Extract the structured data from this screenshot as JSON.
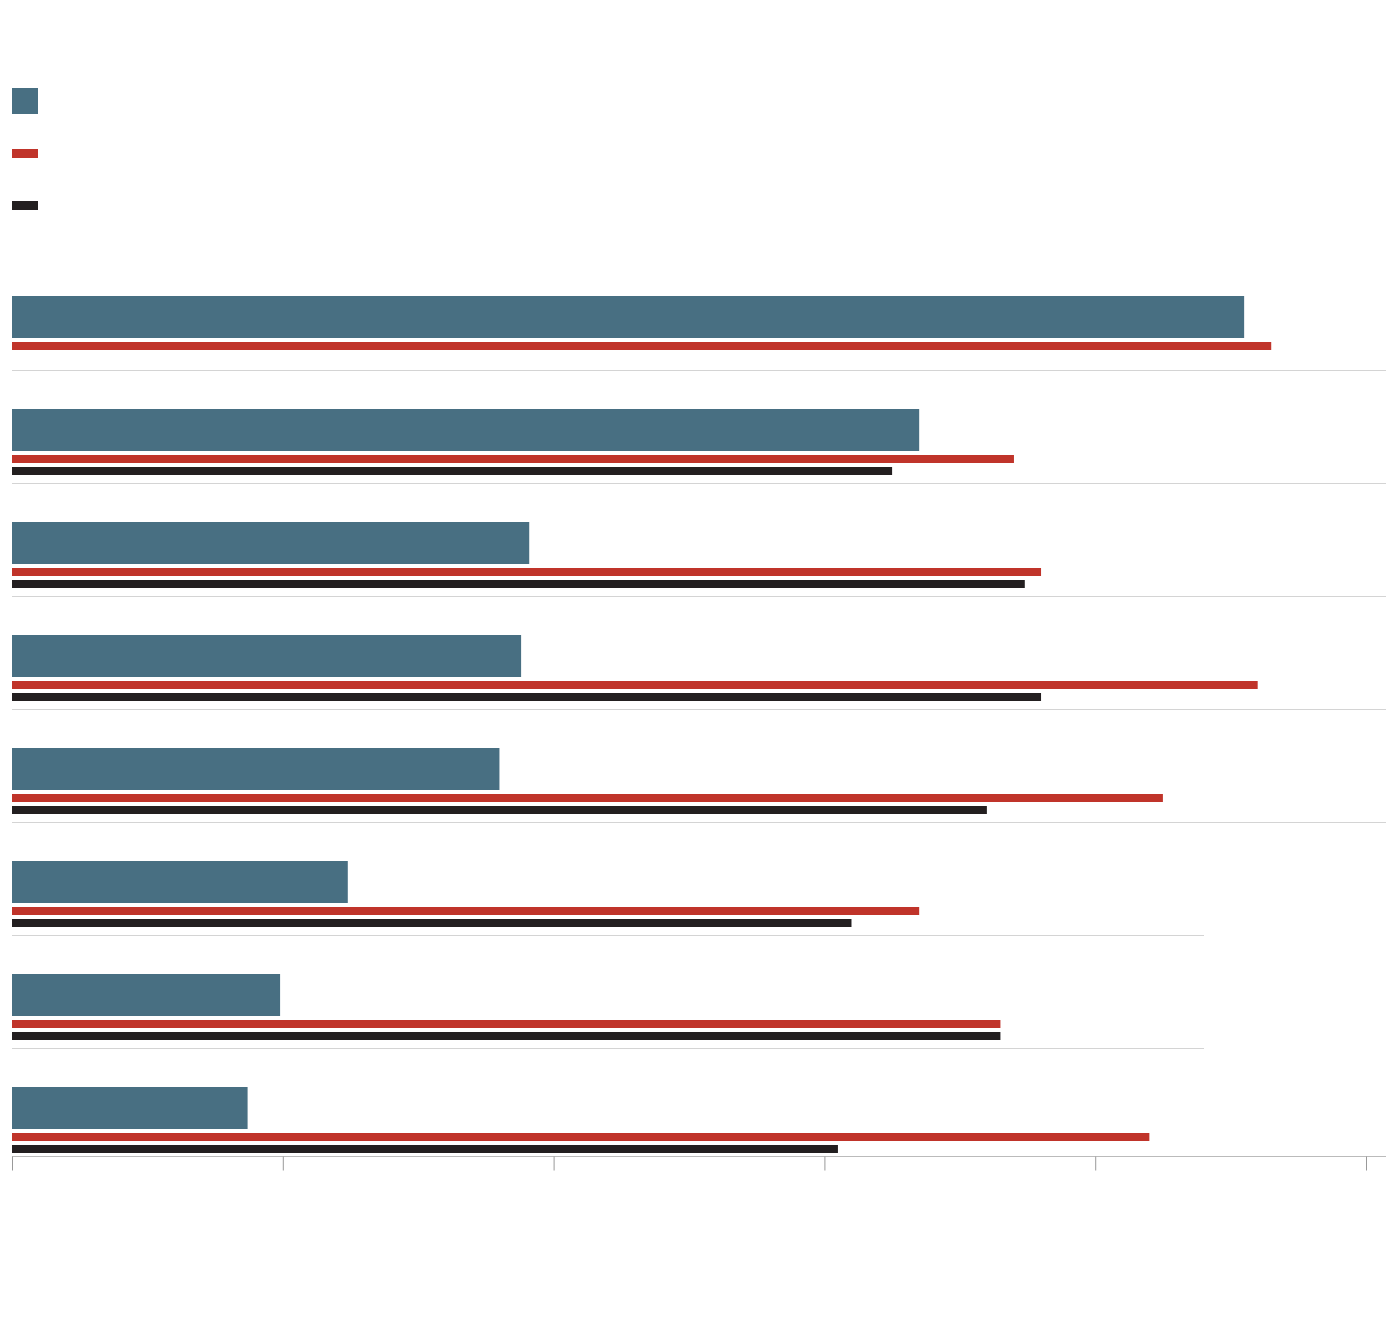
{
  "chart_data": {
    "type": "bar",
    "orientation": "horizontal",
    "categories": [
      null,
      null,
      null,
      null,
      null,
      null,
      null,
      null
    ],
    "series": [
      {
        "color": "#486f82",
        "values": [
          4.55,
          3.35,
          1.91,
          1.88,
          1.8,
          1.24,
          0.99,
          0.87
        ]
      },
      {
        "color": "#c0342a",
        "values": [
          4.65,
          3.7,
          3.8,
          4.6,
          4.25,
          3.35,
          3.65,
          4.2
        ]
      },
      {
        "color": "#231f20",
        "values": [
          null,
          3.25,
          3.74,
          3.8,
          3.6,
          3.1,
          3.65,
          3.05
        ]
      }
    ],
    "xlim": [
      0,
      5
    ],
    "xticks": [
      0,
      1,
      2,
      3,
      4,
      5
    ]
  }
}
